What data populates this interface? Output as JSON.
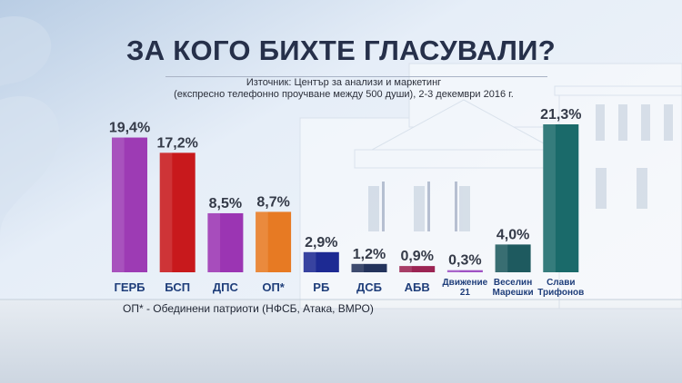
{
  "title": "ЗА КОГО БИХТЕ ГЛАСУВАЛИ?",
  "source_line1": "Източник: Център за анализи и маркетинг",
  "source_line2": "(експресно телефонно проучване между 500 души), 2-3 декември 2016 г.",
  "footnote": "ОП* - Обединени патриоти (НФСБ, Атака, ВМРО)",
  "chart_data": {
    "type": "bar",
    "title": "ЗА КОГО БИХТЕ ГЛАСУВАЛИ?",
    "xlabel": "",
    "ylabel": "",
    "ylim": [
      0,
      21.3
    ],
    "grid": false,
    "categories": [
      "ГЕРБ",
      "БСП",
      "ДПС",
      "ОП*",
      "РБ",
      "ДСБ",
      "АБВ",
      "Движение 21",
      "Веселин Марешки",
      "Слави Трифонов"
    ],
    "category_lines": [
      [
        "ГЕРБ"
      ],
      [
        "БСП"
      ],
      [
        "ДПС"
      ],
      [
        "ОП*"
      ],
      [
        "РБ"
      ],
      [
        "ДСБ"
      ],
      [
        "АБВ"
      ],
      [
        "Движение",
        "21"
      ],
      [
        "Веселин",
        "Марешки"
      ],
      [
        "Слави",
        "Трифонов"
      ]
    ],
    "values": [
      19.4,
      17.2,
      8.5,
      8.7,
      2.9,
      1.2,
      0.9,
      0.3,
      4.0,
      21.3
    ],
    "value_labels": [
      "19,4%",
      "17,2%",
      "8,5%",
      "8,7%",
      "2,9%",
      "1,2%",
      "0,9%",
      "0,3%",
      "4,0%",
      "21,3%"
    ],
    "colors": [
      "#9d3bb4",
      "#c8191c",
      "#9b35b3",
      "#e77a23",
      "#1d2a93",
      "#23335c",
      "#9b2453",
      "#9f51c4",
      "#1e5a5f",
      "#1a6a6a"
    ]
  }
}
